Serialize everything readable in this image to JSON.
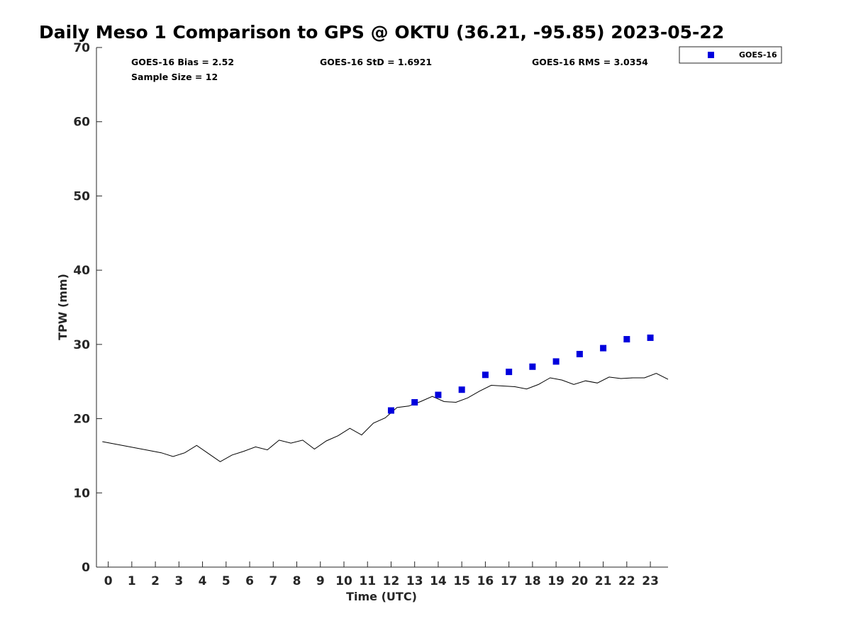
{
  "chart_data": {
    "type": "scatter",
    "title": "Daily Meso 1 Comparison to GPS @ OKTU (36.21, -95.85) 2023-05-22",
    "xlabel": "Time (UTC)",
    "ylabel": "TPW (mm)",
    "xlim": [
      -0.5,
      23.75
    ],
    "ylim": [
      0,
      70
    ],
    "x_ticks": [
      "0",
      "1",
      "2",
      "3",
      "4",
      "5",
      "6",
      "7",
      "8",
      "9",
      "10",
      "11",
      "12",
      "13",
      "14",
      "15",
      "16",
      "17",
      "18",
      "19",
      "20",
      "21",
      "22",
      "23"
    ],
    "y_ticks": [
      "0",
      "10",
      "20",
      "30",
      "40",
      "50",
      "60",
      "70"
    ],
    "grid": false,
    "legend_position": "top-right outside",
    "stats": {
      "bias": "GOES-16 Bias = 2.52",
      "std": "GOES-16 StD = 1.6921",
      "rms": "GOES-16 RMS = 3.0354",
      "sample": "Sample Size = 12"
    },
    "series": [
      {
        "name": "GOES-16",
        "style": "markers",
        "color": "#0000dd",
        "x": [
          12,
          13,
          14,
          15,
          16,
          17,
          18,
          19,
          20,
          21,
          22,
          23
        ],
        "y": [
          21.1,
          22.2,
          23.2,
          23.9,
          25.9,
          26.3,
          27.0,
          27.7,
          28.7,
          29.5,
          30.7,
          30.9
        ]
      },
      {
        "style": "line",
        "color": "#000000",
        "x": [
          -0.25,
          2.25,
          2.75,
          3.25,
          3.75,
          4.25,
          4.75,
          5.25,
          5.75,
          6.25,
          6.75,
          7.25,
          7.75,
          8.25,
          8.75,
          9.25,
          9.75,
          10.25,
          10.75,
          11.25,
          11.75,
          12.25,
          12.75,
          13.25,
          13.75,
          14.25,
          14.75,
          15.25,
          15.75,
          16.25,
          16.75,
          17.25,
          17.75,
          18.25,
          18.75,
          19.25,
          19.75,
          20.25,
          20.75,
          21.25,
          21.75,
          22.25,
          22.75,
          23.25,
          23.75
        ],
        "y": [
          16.9,
          15.4,
          14.9,
          15.4,
          16.4,
          15.3,
          14.2,
          15.1,
          15.6,
          16.2,
          15.8,
          17.1,
          16.7,
          17.1,
          15.9,
          17.0,
          17.7,
          18.7,
          17.8,
          19.4,
          20.1,
          21.5,
          21.7,
          22.3,
          23.0,
          22.3,
          22.2,
          22.8,
          23.7,
          24.5,
          24.4,
          24.3,
          24.0,
          24.6,
          25.5,
          25.2,
          24.6,
          25.1,
          24.8,
          25.6,
          25.4,
          25.5,
          25.5,
          26.1,
          25.3
        ]
      }
    ]
  }
}
